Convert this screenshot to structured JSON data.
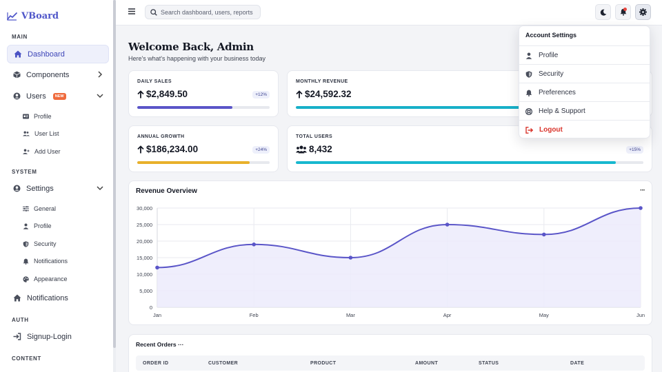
{
  "app": {
    "name": "VBoard"
  },
  "sidebar": {
    "sections": {
      "main": "MAIN",
      "system": "SYSTEM",
      "auth": "AUTH",
      "content": "CONTENT"
    },
    "dashboard": "Dashboard",
    "components": "Components",
    "users": {
      "label": "Users",
      "badge": "NEW",
      "children": [
        "Profile",
        "User List",
        "Add User"
      ]
    },
    "settings": {
      "label": "Settings",
      "children": [
        "General",
        "Profile",
        "Security",
        "Notifications",
        "Appearance"
      ]
    },
    "notifications": "Notifications",
    "signup_login": "Signup-Login"
  },
  "topbar": {
    "search_placeholder": "Search dashboard, users, reports"
  },
  "main": {
    "welcome": "Welcome Back, Admin",
    "subtitle": "Here's what's happening with your business today"
  },
  "stats": [
    {
      "label": "DAILY SALES",
      "value": "$2,849.50",
      "change": "+12%",
      "progress": 0.72,
      "color": "#5a55c8",
      "icon": "arrow-up-icon"
    },
    {
      "label": "MONTHLY REVENUE",
      "value": "$24,592.32",
      "change": "",
      "progress": 0.8,
      "color": "#17b0c8",
      "icon": "arrow-up-icon"
    },
    {
      "label": "ANNUAL GROWTH",
      "value": "$186,234.00",
      "change": "+24%",
      "progress": 0.85,
      "color": "#e8b02a",
      "icon": "arrow-up-icon"
    },
    {
      "label": "TOTAL USERS",
      "value": "8,432",
      "change": "+15%",
      "progress": 0.92,
      "color": "#17b8cf",
      "icon": "users-icon"
    }
  ],
  "revenue_chart": {
    "title": "Revenue Overview",
    "more": "···"
  },
  "chart_data": {
    "type": "area",
    "title": "Revenue Overview",
    "categories": [
      "Jan",
      "Feb",
      "Mar",
      "Apr",
      "May",
      "Jun"
    ],
    "values": [
      12000,
      19000,
      15000,
      25000,
      22000,
      30000
    ],
    "ylim": [
      0,
      30000
    ],
    "yticks": [
      "0",
      "5,000",
      "10,000",
      "15,000",
      "20,000",
      "25,000",
      "30,000"
    ],
    "line_color": "#5a55c8",
    "fill_color": "#ecebfb",
    "grid": true
  },
  "orders": {
    "title": "Recent Orders ···",
    "columns": [
      "ORDER ID",
      "CUSTOMER",
      "PRODUCT",
      "AMOUNT",
      "STATUS",
      "DATE"
    ]
  },
  "account_menu": {
    "title": "Account Settings",
    "items": [
      {
        "label": "Profile",
        "icon": "user-icon"
      },
      {
        "label": "Security",
        "icon": "shield-icon"
      },
      {
        "label": "Preferences",
        "icon": "bell-icon"
      },
      {
        "label": "Help & Support",
        "icon": "lifebuoy-icon"
      },
      {
        "label": "Logout",
        "icon": "logout-icon"
      }
    ]
  }
}
